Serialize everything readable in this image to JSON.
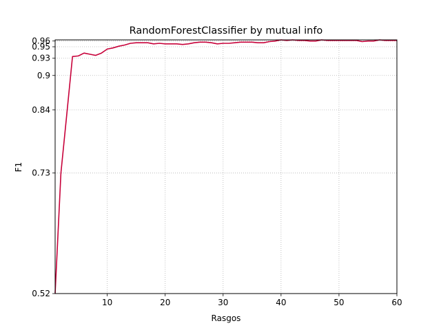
{
  "chart_data": {
    "type": "line",
    "title": "RandomForestClassifier by mutual info",
    "xlabel": "Rasgos",
    "ylabel": "F1",
    "xlim": [
      1,
      60
    ],
    "ylim": [
      0.52,
      0.962
    ],
    "grid": true,
    "x_ticks": [
      10,
      20,
      30,
      40,
      50,
      60
    ],
    "x_tick_labels": [
      "10",
      "20",
      "30",
      "40",
      "50",
      "60"
    ],
    "y_ticks": [
      0.52,
      0.73,
      0.84,
      0.9,
      0.93,
      0.95,
      0.96
    ],
    "y_tick_labels": [
      "0.52",
      "0.73",
      "0.84",
      "0.9",
      "0.93",
      "0.95",
      "0.96"
    ],
    "line_color": "#c70039",
    "series": [
      {
        "x": [
          1,
          2,
          3,
          4,
          5,
          6,
          7,
          8,
          9,
          10,
          11,
          12,
          13,
          14,
          15,
          16,
          17,
          18,
          19,
          20,
          21,
          22,
          23,
          24,
          25,
          26,
          27,
          28,
          29,
          30,
          31,
          32,
          33,
          34,
          35,
          36,
          37,
          38,
          39,
          40,
          41,
          42,
          43,
          44,
          45,
          46,
          47,
          48,
          49,
          50,
          51,
          52,
          53,
          54,
          55,
          56,
          57,
          58,
          59,
          60
        ],
        "y": [
          0.52,
          0.73,
          0.831,
          0.933,
          0.934,
          0.939,
          0.937,
          0.935,
          0.939,
          0.946,
          0.948,
          0.951,
          0.953,
          0.956,
          0.957,
          0.957,
          0.957,
          0.955,
          0.956,
          0.955,
          0.955,
          0.955,
          0.954,
          0.955,
          0.957,
          0.958,
          0.958,
          0.957,
          0.955,
          0.956,
          0.956,
          0.957,
          0.958,
          0.958,
          0.958,
          0.957,
          0.957,
          0.959,
          0.96,
          0.962,
          0.961,
          0.962,
          0.961,
          0.961,
          0.96,
          0.96,
          0.962,
          0.961,
          0.961,
          0.961,
          0.961,
          0.961,
          0.961,
          0.959,
          0.96,
          0.96,
          0.962,
          0.961,
          0.961,
          0.961
        ]
      }
    ]
  }
}
